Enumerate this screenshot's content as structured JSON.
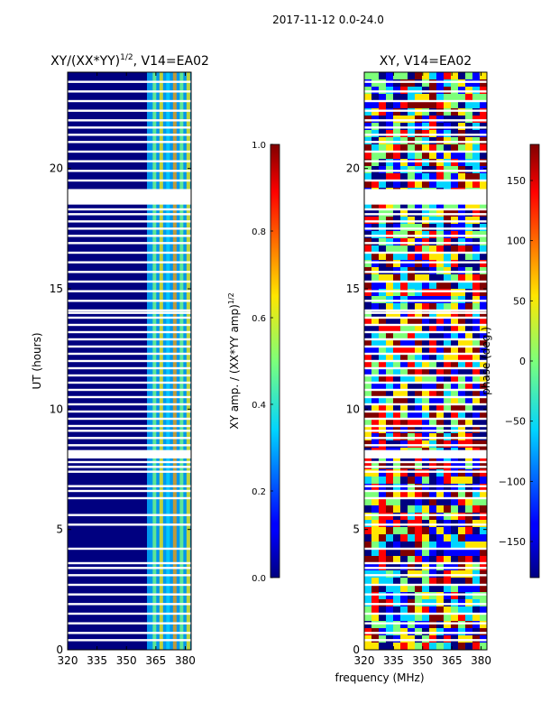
{
  "suptitle": "2017-11-12 0.0-24.0",
  "chart_data": [
    {
      "type": "heatmap",
      "title": "XY/(XX*YY)",
      "title_sup": "1/2",
      "title_suffix": ", V14=EA02",
      "xlabel": "",
      "ylabel": "UT (hours)",
      "xlim": [
        320,
        383
      ],
      "ylim": [
        0,
        24
      ],
      "xticks": [
        "320",
        "335",
        "350",
        "365",
        "380"
      ],
      "xtick_values": [
        320,
        335,
        350,
        365,
        380
      ],
      "yticks": [
        "0",
        "5",
        "10",
        "15",
        "20"
      ],
      "ytick_values": [
        0,
        5,
        10,
        15,
        20
      ],
      "signal_band_mhz": [
        362,
        383
      ],
      "colorbar": {
        "label": "XY amp. / (XX*YY amp)",
        "label_sup": "1/2",
        "range": [
          0.0,
          1.0
        ],
        "ticks": [
          "0.0",
          "0.2",
          "0.4",
          "0.6",
          "0.8",
          "1.0"
        ],
        "tick_values": [
          0.0,
          0.2,
          0.4,
          0.6,
          0.8,
          1.0
        ]
      }
    },
    {
      "type": "heatmap",
      "title": "XY, V14=EA02",
      "xlabel": "frequency (MHz)",
      "ylabel": "",
      "xlim": [
        320,
        383
      ],
      "ylim": [
        0,
        24
      ],
      "xticks": [
        "320",
        "335",
        "350",
        "365",
        "380"
      ],
      "xtick_values": [
        320,
        335,
        350,
        365,
        380
      ],
      "yticks": [
        "0",
        "5",
        "10",
        "15",
        "20"
      ],
      "ytick_values": [
        0,
        5,
        10,
        15,
        20
      ],
      "colorbar": {
        "label": "phase (deg.)",
        "range": [
          -180,
          180
        ],
        "ticks": [
          "−150",
          "−100",
          "−50",
          "0",
          "50",
          "100",
          "150"
        ],
        "tick_values": [
          -150,
          -100,
          -50,
          0,
          50,
          100,
          150
        ]
      }
    }
  ],
  "flagged_ut_hours": [
    0.4,
    0.7,
    1.1,
    1.5,
    1.9,
    2.3,
    2.7,
    3.1,
    3.4,
    3.6,
    4.2,
    5.2,
    5.6,
    6.3,
    6.6,
    6.8,
    7.4,
    7.6,
    7.8,
    8.0,
    8.2,
    8.5,
    8.8,
    9.1,
    9.3,
    9.6,
    9.9,
    10.2,
    10.5,
    10.8,
    11.1,
    11.4,
    11.7,
    12.0,
    12.3,
    12.6,
    12.9,
    13.2,
    13.5,
    13.8,
    14.0,
    14.1,
    14.5,
    14.9,
    15.3,
    15.7,
    16.1,
    16.5,
    16.9,
    17.2,
    17.5,
    17.8,
    18.1,
    18.3,
    18.6,
    18.8,
    19.1,
    19.5,
    19.9,
    20.3,
    20.7,
    21.1,
    21.4,
    21.7,
    22.0,
    22.4,
    22.8,
    23.2,
    23.6
  ]
}
